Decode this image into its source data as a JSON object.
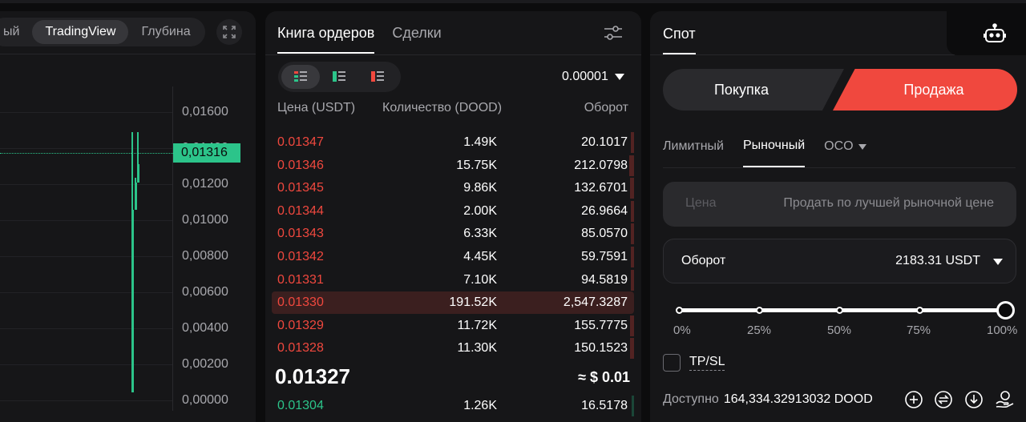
{
  "chart": {
    "tabs": [
      "ый",
      "TradingView",
      "Глубина"
    ],
    "y_labels": [
      "0,01600",
      "0,01400",
      "0,01200",
      "0,01000",
      "0,00800",
      "0,00600",
      "0,00400",
      "0,00200",
      "0,00000"
    ],
    "current_price": "0,01316",
    "accent_color": "#2cc48a"
  },
  "orderbook": {
    "tabs": [
      "Книга ордеров",
      "Сделки"
    ],
    "precision": "0.00001",
    "headers": {
      "price": "Цена (USDT)",
      "quantity": "Количество (DOOD)",
      "turnover": "Оборот"
    },
    "asks": [
      {
        "price": "0.01347",
        "qty": "1.49K",
        "total": "20.1017",
        "depth": 0.01
      },
      {
        "price": "0.01346",
        "qty": "15.75K",
        "total": "212.0798",
        "depth": 0.07
      },
      {
        "price": "0.01345",
        "qty": "9.86K",
        "total": "132.6701",
        "depth": 0.05
      },
      {
        "price": "0.01344",
        "qty": "2.00K",
        "total": "26.9664",
        "depth": 0.01
      },
      {
        "price": "0.01343",
        "qty": "6.33K",
        "total": "85.0570",
        "depth": 0.03
      },
      {
        "price": "0.01342",
        "qty": "4.45K",
        "total": "59.7591",
        "depth": 0.02
      },
      {
        "price": "0.01331",
        "qty": "7.10K",
        "total": "94.5819",
        "depth": 0.03
      },
      {
        "price": "0.01330",
        "qty": "191.52K",
        "total": "2,547.3287",
        "depth": 1.0
      },
      {
        "price": "0.01329",
        "qty": "11.72K",
        "total": "155.7775",
        "depth": 0.06
      },
      {
        "price": "0.01328",
        "qty": "11.30K",
        "total": "150.1523",
        "depth": 0.06
      }
    ],
    "mid_price": "0.01327",
    "mid_usd": "≈ $ 0.01",
    "bids": [
      {
        "price": "0.01304",
        "qty": "1.26K",
        "total": "16.5178",
        "depth": 0.01
      }
    ],
    "sell_color": "#f0483e",
    "buy_color": "#2cc48a"
  },
  "trade": {
    "tab": "Спот",
    "buy_label": "Покупка",
    "sell_label": "Продажа",
    "order_types": [
      "Лимитный",
      "Рыночный",
      "OCO"
    ],
    "price_label": "Цена",
    "price_value": "Продать по лучшей рыночной цене",
    "turnover_label": "Оборот",
    "turnover_value": "2183.31 USDT",
    "slider_percent": 100,
    "slider_labels": [
      "0%",
      "25%",
      "50%",
      "75%",
      "100%"
    ],
    "tpsl_label": "TP/SL",
    "available_label": "Доступно",
    "available_value": "164,334.32913032 DOOD"
  }
}
